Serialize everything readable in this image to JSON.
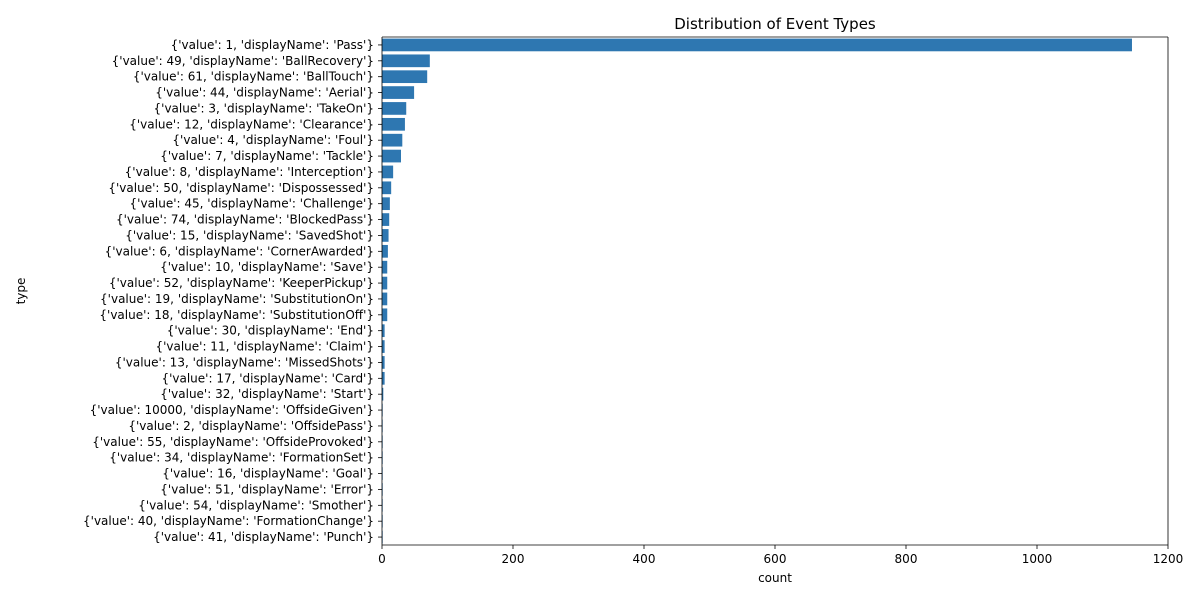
{
  "chart_data": {
    "type": "bar",
    "orientation": "horizontal",
    "title": "Distribution of Event Types",
    "xlabel": "count",
    "ylabel": "type",
    "xlim": [
      0,
      1200
    ],
    "xticks": [
      0,
      200,
      400,
      600,
      800,
      1000,
      1200
    ],
    "bar_color": "#2e77b1",
    "grid": false,
    "categories": [
      "{'value': 1, 'displayName': 'Pass'}",
      "{'value': 49, 'displayName': 'BallRecovery'}",
      "{'value': 61, 'displayName': 'BallTouch'}",
      "{'value': 44, 'displayName': 'Aerial'}",
      "{'value': 3, 'displayName': 'TakeOn'}",
      "{'value': 12, 'displayName': 'Clearance'}",
      "{'value': 4, 'displayName': 'Foul'}",
      "{'value': 7, 'displayName': 'Tackle'}",
      "{'value': 8, 'displayName': 'Interception'}",
      "{'value': 50, 'displayName': 'Dispossessed'}",
      "{'value': 45, 'displayName': 'Challenge'}",
      "{'value': 74, 'displayName': 'BlockedPass'}",
      "{'value': 15, 'displayName': 'SavedShot'}",
      "{'value': 6, 'displayName': 'CornerAwarded'}",
      "{'value': 10, 'displayName': 'Save'}",
      "{'value': 52, 'displayName': 'KeeperPickup'}",
      "{'value': 19, 'displayName': 'SubstitutionOn'}",
      "{'value': 18, 'displayName': 'SubstitutionOff'}",
      "{'value': 30, 'displayName': 'End'}",
      "{'value': 11, 'displayName': 'Claim'}",
      "{'value': 13, 'displayName': 'MissedShots'}",
      "{'value': 17, 'displayName': 'Card'}",
      "{'value': 32, 'displayName': 'Start'}",
      "{'value': 10000, 'displayName': 'OffsideGiven'}",
      "{'value': 2, 'displayName': 'OffsidePass'}",
      "{'value': 55, 'displayName': 'OffsideProvoked'}",
      "{'value': 34, 'displayName': 'FormationSet'}",
      "{'value': 16, 'displayName': 'Goal'}",
      "{'value': 51, 'displayName': 'Error'}",
      "{'value': 54, 'displayName': 'Smother'}",
      "{'value': 40, 'displayName': 'FormationChange'}",
      "{'value': 41, 'displayName': 'Punch'}"
    ],
    "values": [
      1145,
      73,
      69,
      49,
      37,
      35,
      31,
      29,
      17,
      14,
      12,
      11,
      10,
      9,
      8,
      8,
      8,
      8,
      4,
      4,
      4,
      4,
      2,
      1,
      1,
      1,
      1,
      1,
      1,
      1,
      1,
      1
    ]
  }
}
